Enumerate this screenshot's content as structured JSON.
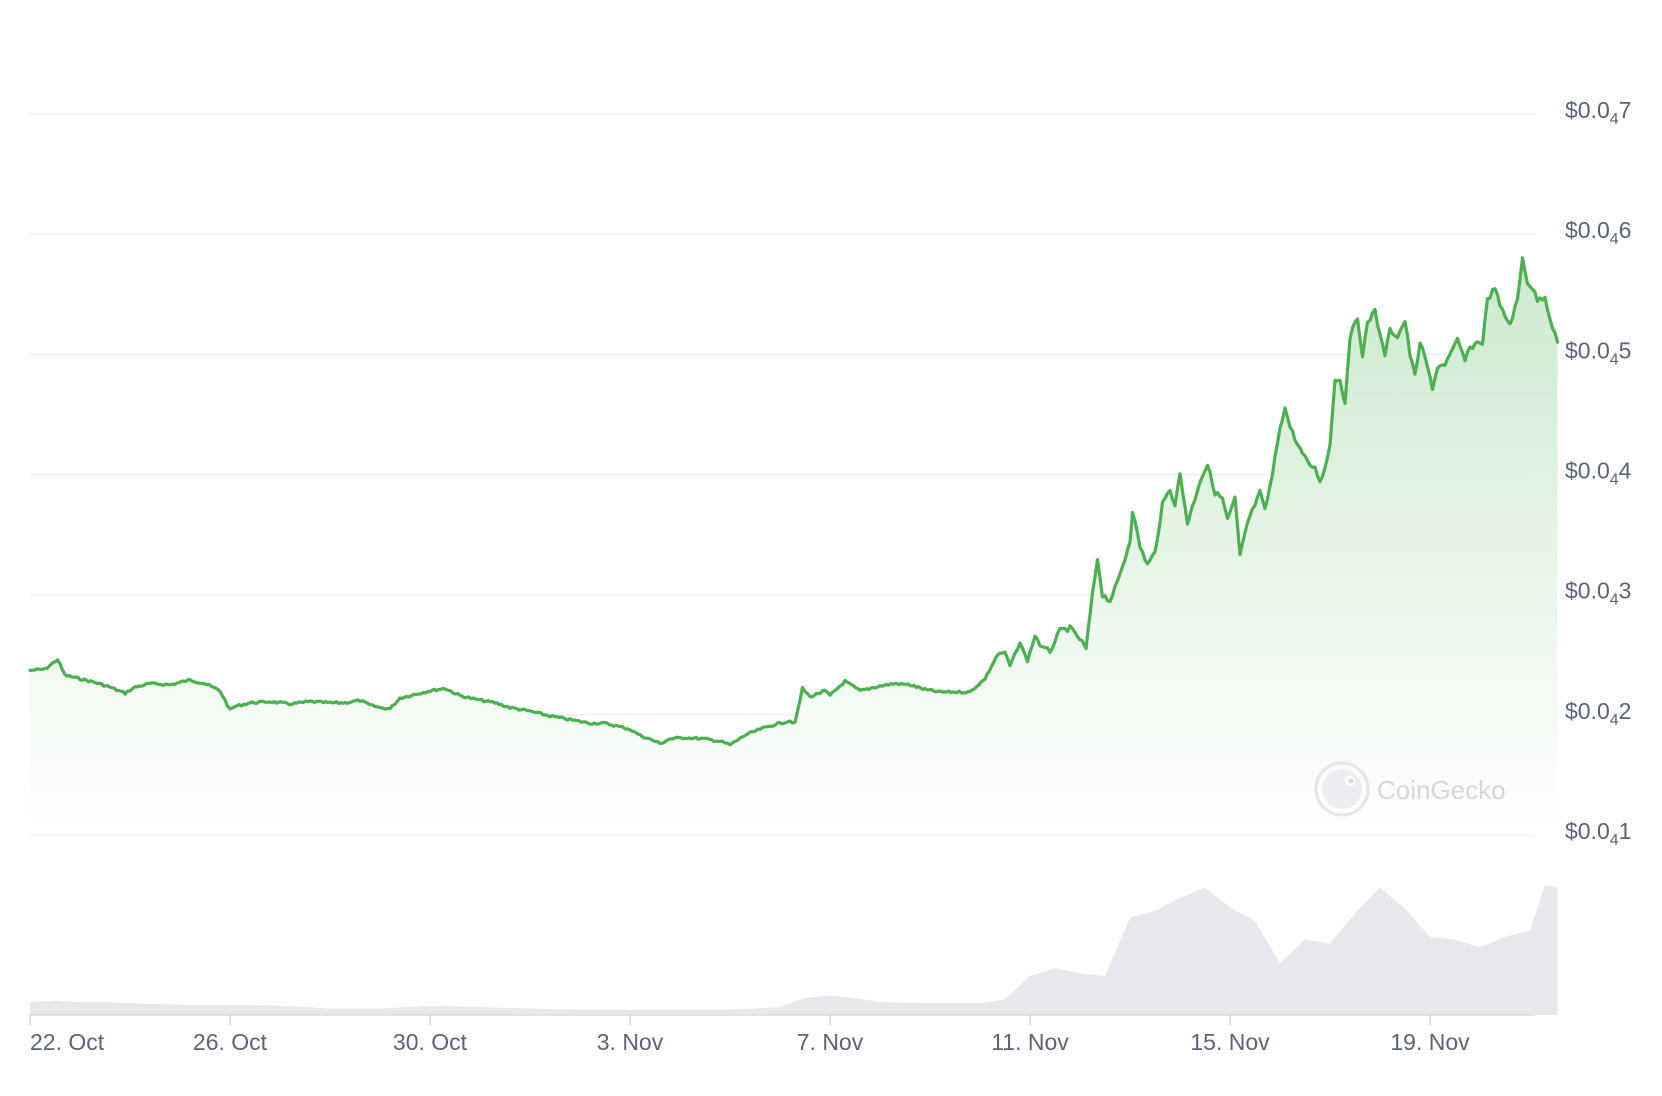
{
  "watermark": "CoinGecko",
  "colors": {
    "line": "#4caf50",
    "area_top": "#c9e8ca",
    "grid": "#eceef1",
    "volume": "#e6e8ee",
    "tick_text": "#5a6478"
  },
  "chart_data": {
    "type": "area",
    "title": "",
    "xlabel": "",
    "ylabel": "",
    "y_ticks": [
      {
        "pre": "$0.0",
        "sub": "4",
        "post": "7",
        "value": 4.7e-05
      },
      {
        "pre": "$0.0",
        "sub": "4",
        "post": "6",
        "value": 4.6e-05
      },
      {
        "pre": "$0.0",
        "sub": "4",
        "post": "5",
        "value": 4.5e-05
      },
      {
        "pre": "$0.0",
        "sub": "4",
        "post": "4",
        "value": 4.4e-05
      },
      {
        "pre": "$0.0",
        "sub": "4",
        "post": "3",
        "value": 4.3e-05
      },
      {
        "pre": "$0.0",
        "sub": "4",
        "post": "2",
        "value": 4.2e-05
      },
      {
        "pre": "$0.0",
        "sub": "4",
        "post": "1",
        "value": 4.1e-05
      }
    ],
    "x_ticks": [
      {
        "label": "22. Oct",
        "day": 0
      },
      {
        "label": "26. Oct",
        "day": 4
      },
      {
        "label": "30. Oct",
        "day": 8
      },
      {
        "label": "3. Nov",
        "day": 12
      },
      {
        "label": "7. Nov",
        "day": 16
      },
      {
        "label": "11. Nov",
        "day": 20
      },
      {
        "label": "15. Nov",
        "day": 24
      },
      {
        "label": "19. Nov",
        "day": 28
      }
    ],
    "ylim": [
      4.095e-05,
      4.71e-05
    ],
    "xlim": [
      0,
      30.1
    ],
    "grid": true,
    "legend": "none",
    "series": [
      {
        "values": [
          [
            0.0,
            4.237e-05
          ],
          [
            0.3,
            4.238e-05
          ],
          [
            0.55,
            4.246e-05
          ],
          [
            0.7,
            4.233e-05
          ],
          [
            1.0,
            4.23e-05
          ],
          [
            1.3,
            4.227e-05
          ],
          [
            1.6,
            4.223e-05
          ],
          [
            1.9,
            4.218e-05
          ],
          [
            2.1,
            4.223e-05
          ],
          [
            2.4,
            4.226e-05
          ],
          [
            2.8,
            4.225e-05
          ],
          [
            3.2,
            4.229e-05
          ],
          [
            3.5,
            4.226e-05
          ],
          [
            3.8,
            4.22e-05
          ],
          [
            4.0,
            4.204e-05
          ],
          [
            4.1,
            4.207e-05
          ],
          [
            4.4,
            4.21e-05
          ],
          [
            4.8,
            4.211e-05
          ],
          [
            5.2,
            4.209e-05
          ],
          [
            5.6,
            4.211e-05
          ],
          [
            6.0,
            4.21e-05
          ],
          [
            6.3,
            4.21e-05
          ],
          [
            6.6,
            4.212e-05
          ],
          [
            6.8,
            4.208e-05
          ],
          [
            7.0,
            4.206e-05
          ],
          [
            7.2,
            4.205e-05
          ],
          [
            7.4,
            4.214e-05
          ],
          [
            7.7,
            4.217e-05
          ],
          [
            8.0,
            4.22e-05
          ],
          [
            8.3,
            4.222e-05
          ],
          [
            8.6,
            4.216e-05
          ],
          [
            8.9,
            4.213e-05
          ],
          [
            9.3,
            4.21e-05
          ],
          [
            9.6,
            4.206e-05
          ],
          [
            10.0,
            4.203e-05
          ],
          [
            10.4,
            4.199e-05
          ],
          [
            10.8,
            4.196e-05
          ],
          [
            11.2,
            4.193e-05
          ],
          [
            11.5,
            4.193e-05
          ],
          [
            11.8,
            4.19e-05
          ],
          [
            12.0,
            4.188e-05
          ],
          [
            12.2,
            4.183e-05
          ],
          [
            12.5,
            4.178e-05
          ],
          [
            12.6,
            4.176e-05
          ],
          [
            12.8,
            4.18e-05
          ],
          [
            13.1,
            4.181e-05
          ],
          [
            13.5,
            4.18e-05
          ],
          [
            13.8,
            4.178e-05
          ],
          [
            14.0,
            4.175e-05
          ],
          [
            14.3,
            4.183e-05
          ],
          [
            14.6,
            4.188e-05
          ],
          [
            14.9,
            4.192e-05
          ],
          [
            15.2,
            4.195e-05
          ],
          [
            15.3,
            4.193e-05
          ],
          [
            15.45,
            4.222e-05
          ],
          [
            15.6,
            4.215e-05
          ],
          [
            15.9,
            4.22e-05
          ],
          [
            16.0,
            4.216e-05
          ],
          [
            16.3,
            4.228e-05
          ],
          [
            16.6,
            4.22e-05
          ],
          [
            17.0,
            4.224e-05
          ],
          [
            17.3,
            4.226e-05
          ],
          [
            17.6,
            4.225e-05
          ],
          [
            17.9,
            4.221e-05
          ],
          [
            18.2,
            4.219e-05
          ],
          [
            18.5,
            4.219e-05
          ],
          [
            18.8,
            4.219e-05
          ],
          [
            19.1,
            4.23e-05
          ],
          [
            19.35,
            4.25e-05
          ],
          [
            19.5,
            4.252e-05
          ],
          [
            19.6,
            4.241e-05
          ],
          [
            19.8,
            4.26e-05
          ],
          [
            19.95,
            4.245e-05
          ],
          [
            20.1,
            4.266e-05
          ],
          [
            20.25,
            4.255e-05
          ],
          [
            20.4,
            4.253e-05
          ],
          [
            20.6,
            4.27e-05
          ],
          [
            20.8,
            4.272e-05
          ],
          [
            21.0,
            4.263e-05
          ],
          [
            21.12,
            4.255e-05
          ],
          [
            21.25,
            4.3e-05
          ],
          [
            21.35,
            4.33e-05
          ],
          [
            21.45,
            4.3e-05
          ],
          [
            21.6,
            4.295e-05
          ],
          [
            21.75,
            4.31e-05
          ],
          [
            21.9,
            4.33e-05
          ],
          [
            22.0,
            4.345e-05
          ],
          [
            22.05,
            4.37e-05
          ],
          [
            22.2,
            4.34e-05
          ],
          [
            22.35,
            4.325e-05
          ],
          [
            22.5,
            4.335e-05
          ],
          [
            22.65,
            4.375e-05
          ],
          [
            22.8,
            4.388e-05
          ],
          [
            22.9,
            4.375e-05
          ],
          [
            23.0,
            4.4e-05
          ],
          [
            23.15,
            4.36e-05
          ],
          [
            23.3,
            4.38e-05
          ],
          [
            23.4,
            4.395e-05
          ],
          [
            23.55,
            4.408e-05
          ],
          [
            23.7,
            4.385e-05
          ],
          [
            23.85,
            4.38e-05
          ],
          [
            23.95,
            4.362e-05
          ],
          [
            24.1,
            4.38e-05
          ],
          [
            24.2,
            4.332e-05
          ],
          [
            24.35,
            4.36e-05
          ],
          [
            24.5,
            4.375e-05
          ],
          [
            24.6,
            4.385e-05
          ],
          [
            24.7,
            4.37e-05
          ],
          [
            24.85,
            4.4e-05
          ],
          [
            25.0,
            4.44e-05
          ],
          [
            25.1,
            4.455e-05
          ],
          [
            25.2,
            4.44e-05
          ],
          [
            25.35,
            4.425e-05
          ],
          [
            25.55,
            4.41e-05
          ],
          [
            25.7,
            4.405e-05
          ],
          [
            25.8,
            4.395e-05
          ],
          [
            25.9,
            4.405e-05
          ],
          [
            26.0,
            4.425e-05
          ],
          [
            26.1,
            4.48e-05
          ],
          [
            26.2,
            4.478e-05
          ],
          [
            26.3,
            4.46e-05
          ],
          [
            26.4,
            4.515e-05
          ],
          [
            26.55,
            4.53e-05
          ],
          [
            26.65,
            4.5e-05
          ],
          [
            26.75,
            4.525e-05
          ],
          [
            26.9,
            4.538e-05
          ],
          [
            27.0,
            4.515e-05
          ],
          [
            27.1,
            4.5e-05
          ],
          [
            27.2,
            4.52e-05
          ],
          [
            27.35,
            4.515e-05
          ],
          [
            27.5,
            4.528e-05
          ],
          [
            27.6,
            4.5e-05
          ],
          [
            27.7,
            4.482e-05
          ],
          [
            27.8,
            4.51e-05
          ],
          [
            27.95,
            4.49e-05
          ],
          [
            28.05,
            4.47e-05
          ],
          [
            28.15,
            4.49e-05
          ],
          [
            28.3,
            4.492e-05
          ],
          [
            28.45,
            4.503e-05
          ],
          [
            28.55,
            4.512e-05
          ],
          [
            28.7,
            4.495e-05
          ],
          [
            28.8,
            4.505e-05
          ],
          [
            28.95,
            4.51e-05
          ],
          [
            29.05,
            4.51e-05
          ],
          [
            29.15,
            4.545e-05
          ],
          [
            29.3,
            4.556e-05
          ],
          [
            29.4,
            4.54e-05
          ],
          [
            29.5,
            4.532e-05
          ],
          [
            29.6,
            4.525e-05
          ],
          [
            29.75,
            4.545e-05
          ],
          [
            29.85,
            4.58e-05
          ],
          [
            29.95,
            4.56e-05
          ],
          [
            30.05,
            4.555e-05
          ],
          [
            30.15,
            4.545e-05
          ],
          [
            30.3,
            4.548e-05
          ],
          [
            30.4,
            4.53e-05
          ],
          [
            30.55,
            4.51e-05
          ]
        ]
      }
    ],
    "volume": [
      [
        0.0,
        0.1
      ],
      [
        0.5,
        0.11
      ],
      [
        1.0,
        0.1
      ],
      [
        1.5,
        0.1
      ],
      [
        2.0,
        0.09
      ],
      [
        3.0,
        0.08
      ],
      [
        4.0,
        0.08
      ],
      [
        5.0,
        0.07
      ],
      [
        6.0,
        0.05
      ],
      [
        7.0,
        0.05
      ],
      [
        8.0,
        0.07
      ],
      [
        9.0,
        0.06
      ],
      [
        10.0,
        0.05
      ],
      [
        11.0,
        0.04
      ],
      [
        12.0,
        0.04
      ],
      [
        13.0,
        0.04
      ],
      [
        14.0,
        0.04
      ],
      [
        15.0,
        0.06
      ],
      [
        15.5,
        0.13
      ],
      [
        16.0,
        0.15
      ],
      [
        16.5,
        0.13
      ],
      [
        17.0,
        0.1
      ],
      [
        18.0,
        0.09
      ],
      [
        19.0,
        0.09
      ],
      [
        19.5,
        0.12
      ],
      [
        20.0,
        0.3
      ],
      [
        20.5,
        0.36
      ],
      [
        21.0,
        0.32
      ],
      [
        21.5,
        0.3
      ],
      [
        22.0,
        0.75
      ],
      [
        22.5,
        0.8
      ],
      [
        23.0,
        0.9
      ],
      [
        23.5,
        0.98
      ],
      [
        24.0,
        0.83
      ],
      [
        24.5,
        0.72
      ],
      [
        25.0,
        0.4
      ],
      [
        25.5,
        0.58
      ],
      [
        26.0,
        0.55
      ],
      [
        26.5,
        0.78
      ],
      [
        27.0,
        0.98
      ],
      [
        27.5,
        0.82
      ],
      [
        28.0,
        0.6
      ],
      [
        28.5,
        0.58
      ],
      [
        29.0,
        0.52
      ],
      [
        29.5,
        0.6
      ],
      [
        30.0,
        0.65
      ],
      [
        30.3,
        1.0
      ],
      [
        30.55,
        0.98
      ]
    ]
  }
}
